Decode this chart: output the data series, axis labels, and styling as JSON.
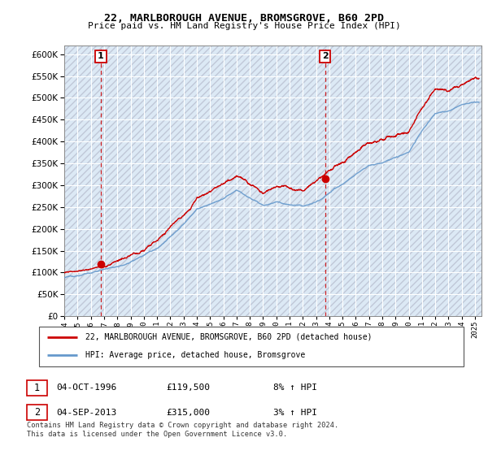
{
  "title": "22, MARLBOROUGH AVENUE, BROMSGROVE, B60 2PD",
  "subtitle": "Price paid vs. HM Land Registry's House Price Index (HPI)",
  "xlim_start": 1994.0,
  "xlim_end": 2025.5,
  "ylim": [
    0,
    620000
  ],
  "yticks": [
    0,
    50000,
    100000,
    150000,
    200000,
    250000,
    300000,
    350000,
    400000,
    450000,
    500000,
    550000,
    600000
  ],
  "sale1_year": 1996.75,
  "sale1_price": 119500,
  "sale2_year": 2013.67,
  "sale2_price": 315000,
  "annotation1_label": "1",
  "annotation2_label": "2",
  "legend_line1": "22, MARLBOROUGH AVENUE, BROMSGROVE, B60 2PD (detached house)",
  "legend_line2": "HPI: Average price, detached house, Bromsgrove",
  "table_row1": [
    "1",
    "04-OCT-1996",
    "£119,500",
    "8% ↑ HPI"
  ],
  "table_row2": [
    "2",
    "04-SEP-2013",
    "£315,000",
    "3% ↑ HPI"
  ],
  "footnote": "Contains HM Land Registry data © Crown copyright and database right 2024.\nThis data is licensed under the Open Government Licence v3.0.",
  "price_line_color": "#cc0000",
  "hpi_line_color": "#6699cc",
  "bg_color": "#dce9f5",
  "grid_color": "#aaaacc",
  "annotation_box_color": "#cc0000"
}
